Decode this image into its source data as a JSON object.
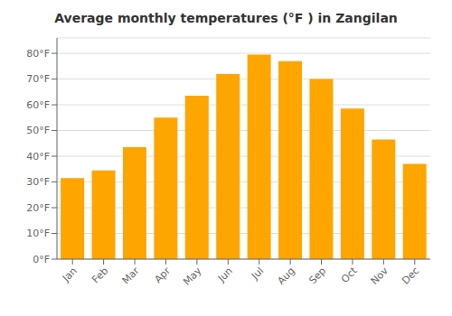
{
  "chart_data": {
    "type": "bar",
    "title": "Average monthly temperatures (°F ) in Zangilan",
    "categories": [
      "Jan",
      "Feb",
      "Mar",
      "Apr",
      "May",
      "Jun",
      "Jul",
      "Aug",
      "Sep",
      "Oct",
      "Nov",
      "Dec"
    ],
    "values": [
      31.5,
      34.5,
      43.5,
      55.0,
      63.5,
      72.0,
      79.5,
      77.0,
      70.0,
      58.5,
      46.5,
      37.0
    ],
    "color": "#FFA500",
    "ylim": [
      0,
      86
    ],
    "yticks": [
      {
        "value": 0,
        "label": "0°F"
      },
      {
        "value": 10,
        "label": "10°F"
      },
      {
        "value": 20,
        "label": "20°F"
      },
      {
        "value": 30,
        "label": "30°F"
      },
      {
        "value": 40,
        "label": "40°F"
      },
      {
        "value": 50,
        "label": "50°F"
      },
      {
        "value": 60,
        "label": "60°F"
      },
      {
        "value": 70,
        "label": "70°F"
      },
      {
        "value": 80,
        "label": "80°F"
      }
    ],
    "grid": true
  }
}
